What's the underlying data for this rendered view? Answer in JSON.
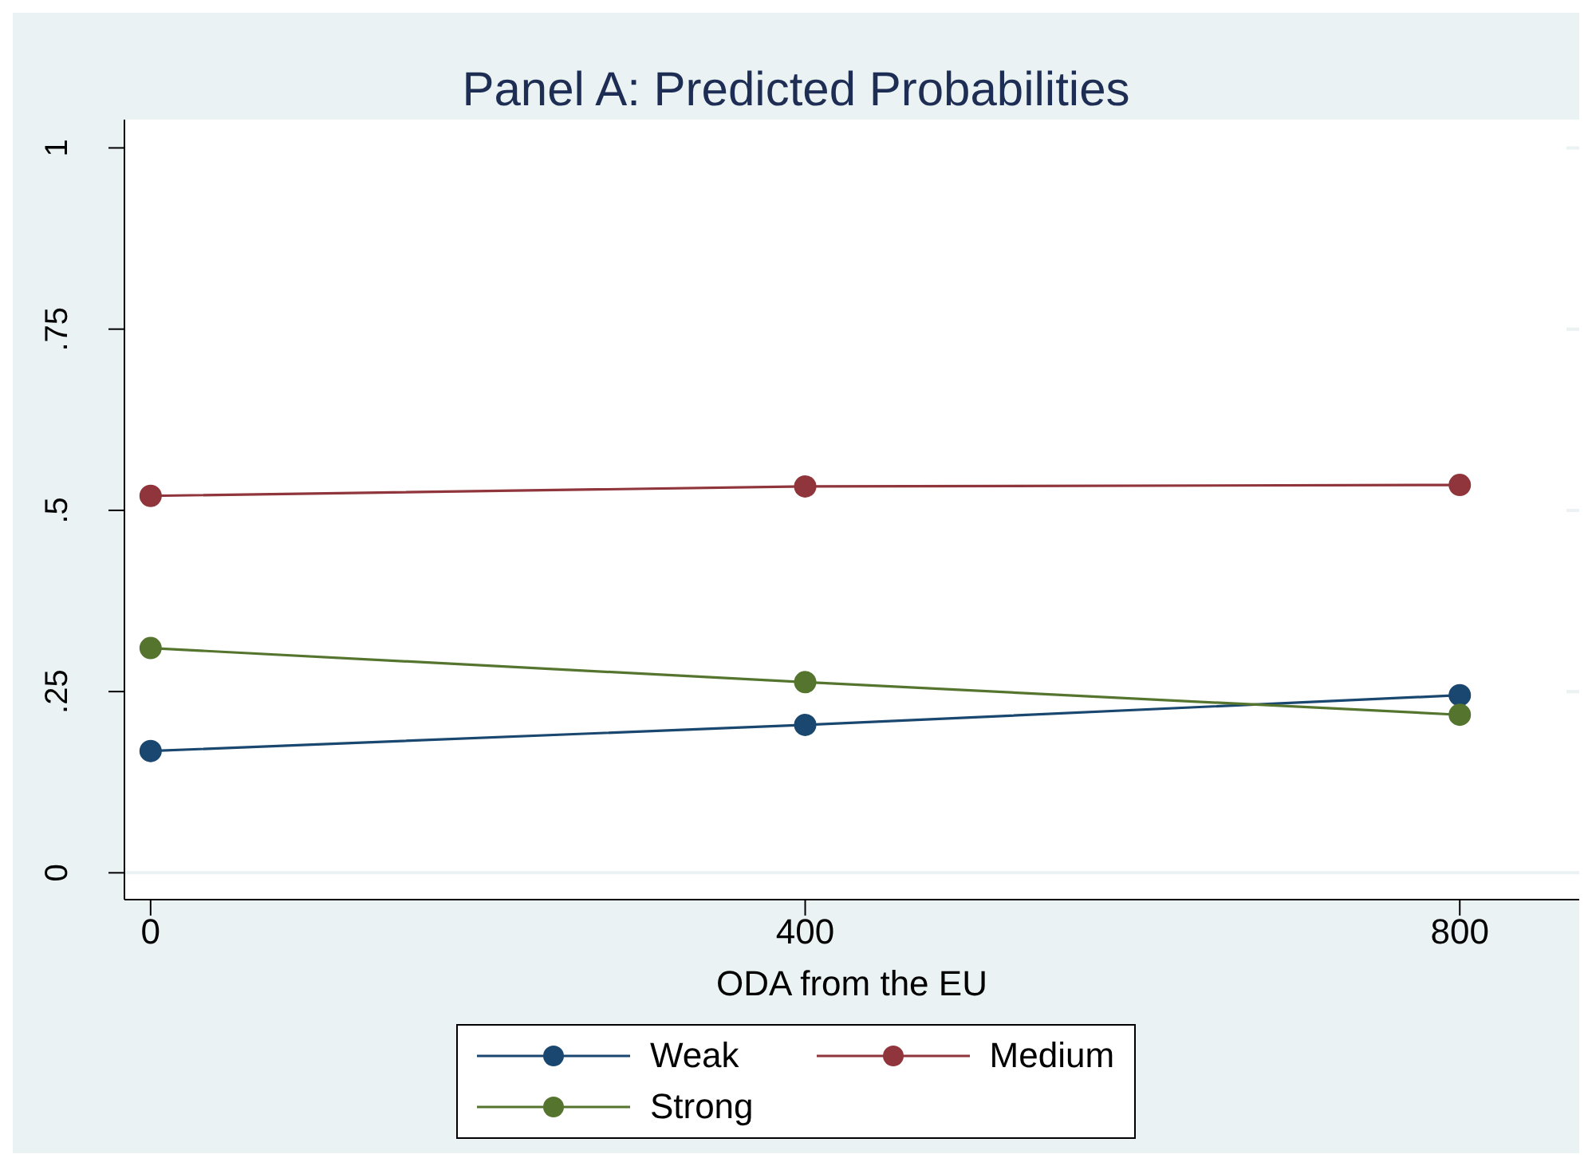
{
  "chart_data": {
    "type": "line",
    "title": "Panel A: Predicted Probabilities",
    "xlabel": "ODA from the EU",
    "x": [
      0,
      400,
      800
    ],
    "series": [
      {
        "name": "Weak",
        "color": "#1a476f",
        "values": [
          0.168,
          0.204,
          0.245
        ]
      },
      {
        "name": "Medium",
        "color": "#90353b",
        "values": [
          0.52,
          0.533,
          0.535
        ]
      },
      {
        "name": "Strong",
        "color": "#55752f",
        "values": [
          0.31,
          0.263,
          0.218
        ]
      }
    ],
    "xlim": [
      -16,
      873
    ],
    "xticks": [
      0,
      400,
      800
    ],
    "ylim": [
      -0.037,
      1.039
    ],
    "yticks": [
      {
        "value": 0,
        "label": "0"
      },
      {
        "value": 0.25,
        "label": ".25"
      },
      {
        "value": 0.5,
        "label": ".5"
      },
      {
        "value": 0.75,
        "label": ".75"
      },
      {
        "value": 1,
        "label": "1"
      }
    ],
    "grid": "y",
    "legend": "bottom",
    "marker": "circle",
    "line_style": "solid"
  }
}
